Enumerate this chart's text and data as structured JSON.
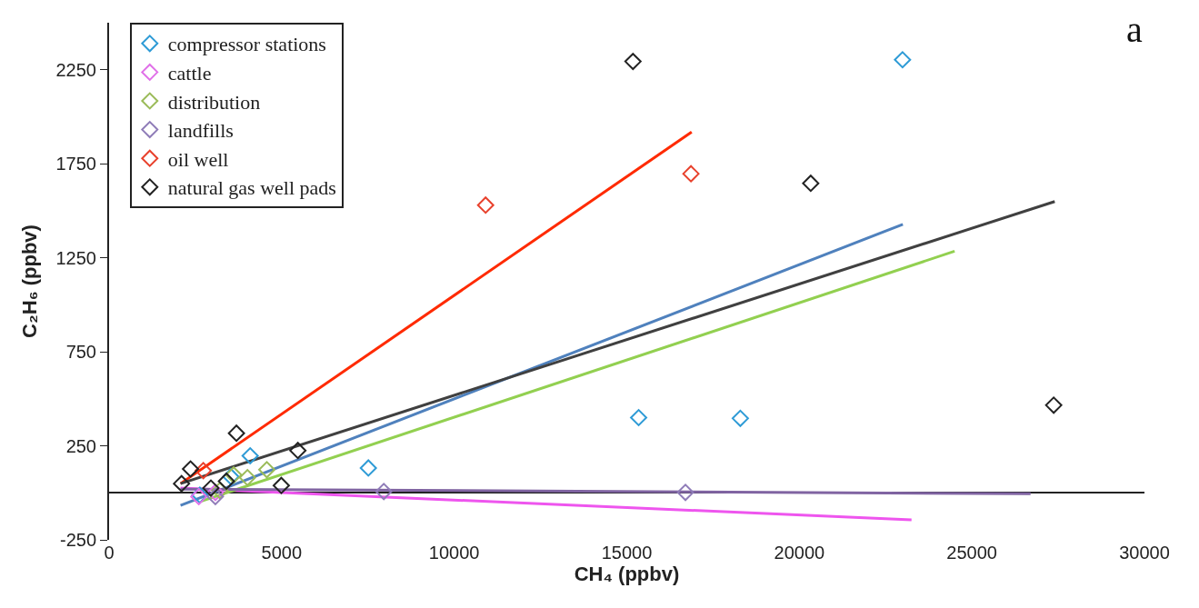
{
  "chart_data": {
    "type": "scatter",
    "xlabel": "CH₄ (ppbv)",
    "ylabel": "C₂H₆ (ppbv)",
    "annotations": [
      "a"
    ],
    "xlim": [
      0,
      30000
    ],
    "xticks": [
      0,
      5000,
      10000,
      15000,
      20000,
      25000,
      30000
    ],
    "ylim": [
      -250,
      2500
    ],
    "yticks": [
      -250,
      250,
      750,
      1250,
      1750,
      2250
    ],
    "legend": "top left",
    "marker": "diamond",
    "series": [
      {
        "name": "compressor stations",
        "color": "#2e9bd6",
        "x": [
          2630,
          3530,
          4088,
          7512,
          15344,
          18290,
          22990
        ],
        "values": [
          -12,
          86,
          197,
          132,
          400,
          396,
          2303
        ]
      },
      {
        "name": "cattle",
        "color": "#e070e8",
        "x": [
          2600,
          3080
        ],
        "values": [
          -20,
          2
        ]
      },
      {
        "name": "distribution",
        "color": "#9bbb59",
        "x": [
          3210,
          3610,
          4010,
          4570
        ],
        "values": [
          12,
          95,
          81,
          123
        ]
      },
      {
        "name": "landfills",
        "color": "#8f7cb8",
        "x": [
          3080,
          7960,
          16700
        ],
        "values": [
          -20,
          7,
          2
        ]
      },
      {
        "name": "oil well",
        "color": "#e8412c",
        "x": [
          2730,
          10910,
          16860
        ],
        "values": [
          118,
          1530,
          1697
        ]
      },
      {
        "name": "natural gas well pads",
        "color": "#222222",
        "x": [
          2100,
          2360,
          2950,
          3400,
          3690,
          4990,
          5470,
          15180,
          20330,
          27370
        ],
        "values": [
          49,
          127,
          25,
          62,
          317,
          39,
          225,
          2294,
          1646,
          466
        ]
      },
      {
        "type": "line",
        "marker": "none",
        "color": "#4f81bd",
        "x": [
          2070,
          23000
        ],
        "values": [
          -67,
          1428
        ]
      },
      {
        "type": "line",
        "marker": "none",
        "color": "#ee55ee",
        "x": [
          2070,
          23250
        ],
        "values": [
          25,
          -144
        ]
      },
      {
        "type": "line",
        "marker": "none",
        "color": "#92d050",
        "x": [
          2680,
          24500
        ],
        "values": [
          -44,
          1285
        ]
      },
      {
        "type": "line",
        "marker": "none",
        "color": "#8064a2",
        "x": [
          2070,
          26700
        ],
        "values": [
          20,
          -5
        ]
      },
      {
        "type": "line",
        "marker": "none",
        "color": "#ff2a00",
        "x": [
          2070,
          16880
        ],
        "values": [
          49,
          1919
        ]
      },
      {
        "type": "line",
        "marker": "none",
        "color": "#404040",
        "x": [
          2070,
          27400
        ],
        "values": [
          49,
          1549
        ]
      }
    ]
  }
}
